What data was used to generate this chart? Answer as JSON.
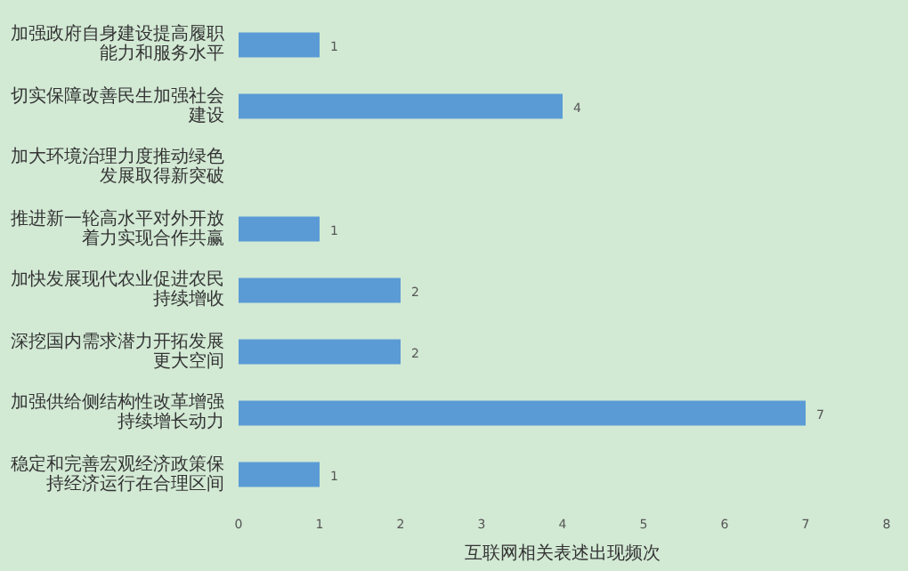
{
  "chart_data": {
    "type": "bar",
    "orientation": "horizontal",
    "xlabel": "互联网相关表述出现频次",
    "categories": [
      "加强政府自身建设提高履职能力和服务水平",
      "切实保障改善民生加强社会建设",
      "加大环境治理力度推动绿色发展取得新突破",
      "推进新一轮高水平对外开放着力实现合作共赢",
      "加快发展现代农业促进农民持续增收",
      "深挖国内需求潜力开拓发展更大空间",
      "加强供给侧结构性改革增强持续增长动力",
      "稳定和完善宏观经济政策保持经济运行在合理区间"
    ],
    "values": [
      1,
      4,
      null,
      1,
      2,
      2,
      7,
      1
    ],
    "color": "#5b9bd5",
    "data_labels": true,
    "xlim": [
      0,
      8
    ],
    "xticks": [
      0,
      1,
      2,
      3,
      4,
      5,
      6,
      7,
      8
    ],
    "grid": false,
    "legend": false
  }
}
